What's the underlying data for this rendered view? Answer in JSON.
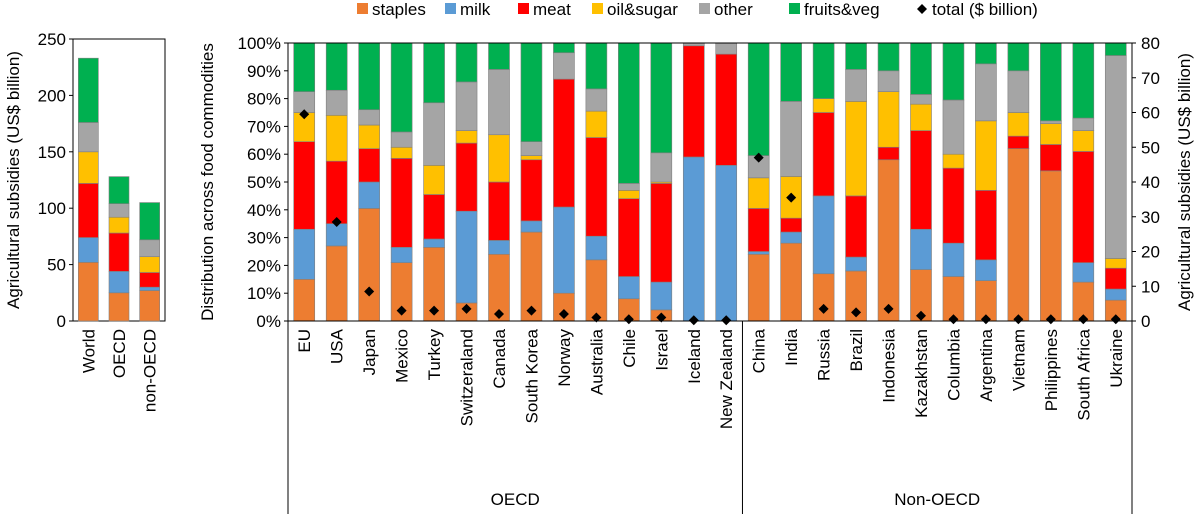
{
  "legend": [
    {
      "key": "staples",
      "label": "staples",
      "color": "#ED7D31"
    },
    {
      "key": "milk",
      "label": "milk",
      "color": "#5B9BD5"
    },
    {
      "key": "meat",
      "label": "meat",
      "color": "#FF0000"
    },
    {
      "key": "oil_sugar",
      "label": "oil&sugar",
      "color": "#FFC000"
    },
    {
      "key": "other",
      "label": "other",
      "color": "#A5A5A5"
    },
    {
      "key": "fruits_veg",
      "label": "fruits&veg",
      "color": "#00B050"
    },
    {
      "key": "total",
      "label": "total ($ billion)",
      "color": "#000000"
    }
  ],
  "chart_data": [
    {
      "type": "bar",
      "stacked": true,
      "ylabel": "Agricultural subsidies (US$ billion)",
      "ylim": [
        0,
        250
      ],
      "yticks": [
        0,
        50,
        100,
        150,
        200,
        250
      ],
      "categories": [
        "World",
        "OECD",
        "non-OECD"
      ],
      "series": [
        {
          "name": "staples",
          "values": [
            52,
            25,
            27
          ]
        },
        {
          "name": "milk",
          "values": [
            22,
            19,
            3
          ]
        },
        {
          "name": "meat",
          "values": [
            48,
            34,
            13
          ]
        },
        {
          "name": "oil&sugar",
          "values": [
            28,
            14,
            14
          ]
        },
        {
          "name": "other",
          "values": [
            26,
            12,
            15
          ]
        },
        {
          "name": "fruits&veg",
          "values": [
            57,
            24,
            33
          ]
        }
      ]
    },
    {
      "type": "bar",
      "stacked": true,
      "ylabel": "Distribution across food commodities",
      "y2label": "Agricultural subsidies (US$ billion)",
      "ylim": [
        0,
        100
      ],
      "yticks": [
        "0%",
        "10%",
        "20%",
        "30%",
        "40%",
        "50%",
        "60%",
        "70%",
        "80%",
        "90%",
        "100%"
      ],
      "y2lim": [
        0,
        80
      ],
      "y2ticks": [
        0,
        10,
        20,
        30,
        40,
        50,
        60,
        70,
        80
      ],
      "categories": [
        "EU",
        "USA",
        "Japan",
        "Mexico",
        "Turkey",
        "Switzeraland",
        "Canada",
        "South Korea",
        "Norway",
        "Australia",
        "Chile",
        "Israel",
        "Iceland",
        "New Zealand",
        "China",
        "India",
        "Russia",
        "Brazil",
        "Indonesia",
        "Kazakhstan",
        "Columbia",
        "Argentina",
        "Vietnam",
        "Philippines",
        "South Africa",
        "Ukraine"
      ],
      "groups": [
        {
          "label": "OECD",
          "count": 14
        },
        {
          "label": "Non-OECD",
          "count": 12
        }
      ],
      "series": [
        {
          "name": "staples",
          "values": [
            15,
            27,
            40.5,
            21,
            26.5,
            6.5,
            24,
            32,
            10,
            22,
            8,
            4,
            0,
            0,
            24,
            28,
            17,
            18,
            58,
            18.5,
            16,
            14.5,
            62,
            54,
            14,
            7.5
          ]
        },
        {
          "name": "milk",
          "values": [
            18,
            8,
            9.5,
            5.5,
            3,
            33,
            5,
            4,
            31,
            8.5,
            8,
            10,
            59,
            56,
            1,
            4,
            28,
            5,
            0,
            14.5,
            12,
            7.5,
            0,
            0,
            7,
            4
          ]
        },
        {
          "name": "meat",
          "values": [
            31.5,
            22.5,
            12,
            32,
            16,
            24.5,
            21,
            22,
            46,
            35.5,
            28,
            35.5,
            40,
            40,
            15.5,
            5,
            30,
            22,
            4.5,
            35.5,
            27,
            25,
            4.5,
            9.5,
            40,
            7.5
          ]
        },
        {
          "name": "oil&sugar",
          "values": [
            10.5,
            16.5,
            8.5,
            4,
            10.5,
            4.5,
            17,
            1.5,
            0,
            9.5,
            3,
            0.5,
            0,
            0,
            11,
            15,
            5,
            34,
            20,
            9.5,
            5,
            25,
            8.5,
            7.5,
            7.5,
            3.5
          ]
        },
        {
          "name": "other",
          "values": [
            7.5,
            9,
            5.5,
            5.5,
            22.5,
            17.5,
            23.5,
            5,
            9.5,
            8,
            2.5,
            10.5,
            1,
            4,
            8,
            27,
            0,
            11.5,
            7.5,
            3.5,
            19.5,
            20.5,
            15,
            1,
            4.5,
            73
          ]
        },
        {
          "name": "fruits&veg",
          "values": [
            17.5,
            17,
            24,
            32,
            21.5,
            14,
            9.5,
            35.5,
            3.5,
            16.5,
            50.5,
            39.5,
            0,
            0,
            40.5,
            21,
            20,
            9.5,
            10,
            18.5,
            20.5,
            7.5,
            10,
            28,
            27,
            4.5
          ]
        },
        {
          "name": "total ($ billion)",
          "values": [
            59.5,
            28.5,
            8.5,
            3,
            3,
            3.5,
            2,
            3,
            2,
            1,
            0.5,
            1,
            0.2,
            0.2,
            47,
            35.5,
            3.5,
            2.5,
            3.5,
            1.5,
            0.5,
            0.5,
            0.5,
            0.5,
            0.5,
            0.5
          ]
        }
      ]
    }
  ]
}
